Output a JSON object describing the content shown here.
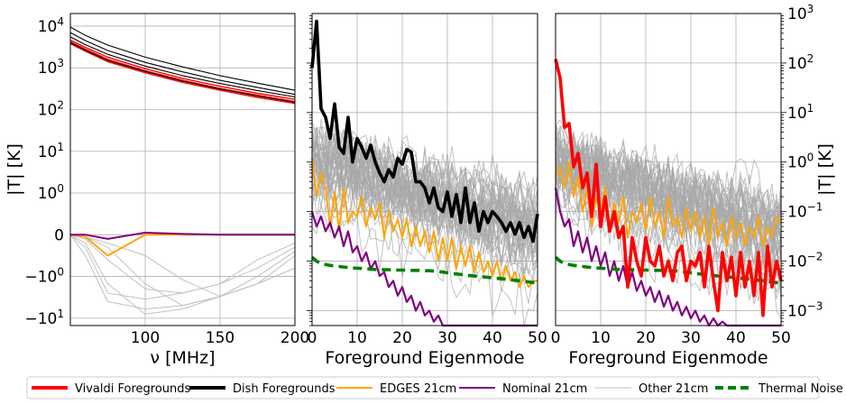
{
  "chart_data": [
    {
      "type": "line",
      "panel": "left",
      "xlabel": "ν [MHz]",
      "ylabel": "|T| [K]",
      "xlim": [
        50,
        200
      ],
      "yscale": "symlog",
      "ylim": [
        -15,
        20000
      ],
      "x_ticks": [
        "100",
        "150",
        "200"
      ],
      "y_ticks": [
        "10^4",
        "10^3",
        "10^2",
        "10^1",
        "10^0",
        "0",
        "−10^0",
        "−10^1"
      ],
      "grid": true,
      "x": [
        50,
        60,
        75,
        100,
        125,
        150,
        175,
        200
      ],
      "series": [
        {
          "name": "Vivaldi Foregrounds",
          "color": "#ff0000",
          "values": [
            4200,
            2800,
            1600,
            850,
            500,
            320,
            220,
            155
          ]
        },
        {
          "name": "Vivaldi Foregrounds",
          "color": "#ff0000",
          "values": [
            3800,
            2500,
            1400,
            760,
            450,
            290,
            195,
            140
          ]
        },
        {
          "name": "Vivaldi Foregrounds",
          "color": "#ff0000",
          "values": [
            4600,
            3100,
            1800,
            950,
            560,
            360,
            245,
            175
          ]
        },
        {
          "name": "Dish Foregrounds",
          "color": "#000000",
          "values": [
            9500,
            6000,
            3500,
            1800,
            1050,
            650,
            430,
            290
          ]
        },
        {
          "name": "Dish Foregrounds",
          "color": "#000000",
          "values": [
            7000,
            4500,
            2600,
            1350,
            800,
            500,
            340,
            230
          ]
        },
        {
          "name": "Dish Foregrounds",
          "color": "#000000",
          "values": [
            5500,
            3600,
            2100,
            1100,
            650,
            420,
            285,
            200
          ]
        },
        {
          "name": "Dish Foregrounds",
          "color": "#000000",
          "values": [
            4000,
            2650,
            1500,
            820,
            480,
            310,
            210,
            150
          ]
        },
        {
          "name": "EDGES 21cm",
          "color": "#ffa500",
          "values": [
            0,
            -0.05,
            -0.5,
            0,
            0,
            0,
            0,
            0
          ]
        },
        {
          "name": "Nominal 21cm",
          "color": "#800080",
          "values": [
            0,
            0,
            -0.1,
            0.05,
            0.02,
            0,
            0,
            0
          ]
        },
        {
          "name": "Other 21cm",
          "color": "#c0c0c0",
          "values": [
            0,
            -0.5,
            -4,
            -6,
            -5,
            -3,
            -1.5,
            -0.8
          ]
        },
        {
          "name": "Other 21cm",
          "color": "#c0c0c0",
          "values": [
            0,
            -0.2,
            -1.5,
            -8,
            -6,
            -3,
            -1.5,
            -0.8
          ]
        },
        {
          "name": "Other 21cm",
          "color": "#c0c0c0",
          "values": [
            0,
            -0.05,
            -0.3,
            -1.5,
            -5,
            -3,
            -1,
            -0.4
          ]
        },
        {
          "name": "Other 21cm",
          "color": "#c0c0c0",
          "values": [
            0,
            -0.05,
            -0.2,
            -0.5,
            -1.2,
            -3,
            -1.5,
            -0.5
          ]
        },
        {
          "name": "Other 21cm",
          "color": "#c0c0c0",
          "values": [
            0,
            -0.1,
            -0.6,
            -2,
            -2.5,
            -1.5,
            -0.8,
            -0.3
          ]
        },
        {
          "name": "Other 21cm",
          "color": "#c0c0c0",
          "values": [
            0,
            -0.3,
            -2.5,
            -3.5,
            -2.5,
            -1.5,
            -0.6,
            -0.2
          ]
        }
      ]
    },
    {
      "type": "line",
      "panel": "middle",
      "xlabel": "Foreground Eigenmode",
      "xlim": [
        0,
        50
      ],
      "yscale": "log",
      "ylim": [
        0.0005,
        1000
      ],
      "x_ticks": [
        "0",
        "10",
        "20",
        "30",
        "40",
        "50"
      ],
      "grid": true,
      "x": [
        0,
        1,
        2,
        3,
        4,
        5,
        6,
        7,
        8,
        9,
        10,
        11,
        12,
        13,
        14,
        15,
        16,
        17,
        18,
        19,
        20,
        21,
        22,
        23,
        24,
        25,
        26,
        27,
        28,
        29,
        30,
        31,
        32,
        33,
        34,
        35,
        36,
        37,
        38,
        39,
        40,
        41,
        42,
        43,
        44,
        45,
        46,
        47,
        48,
        49,
        50
      ],
      "series": [
        {
          "name": "Dish Foregrounds",
          "color": "#000000",
          "values": [
            80,
            700,
            12,
            8,
            3,
            15,
            2,
            1.5,
            8,
            1,
            3,
            2,
            1.2,
            2.2,
            1,
            0.6,
            0.4,
            0.7,
            0.5,
            1.2,
            0.9,
            1.8,
            1.6,
            0.4,
            0.4,
            0.3,
            0.15,
            0.3,
            0.12,
            0.1,
            0.25,
            0.08,
            0.22,
            0.06,
            0.3,
            0.06,
            0.15,
            0.04,
            0.1,
            0.06,
            0.1,
            0.08,
            0.06,
            0.04,
            0.06,
            0.035,
            0.06,
            0.03,
            0.05,
            0.025,
            0.09
          ]
        },
        {
          "name": "EDGES 21cm",
          "color": "#ffa500",
          "values": [
            1.2,
            0.2,
            0.6,
            0.3,
            0.05,
            0.25,
            0.04,
            0.3,
            0.06,
            0.1,
            0.08,
            0.2,
            0.05,
            0.12,
            0.07,
            0.15,
            0.03,
            0.1,
            0.04,
            0.07,
            0.03,
            0.07,
            0.02,
            0.05,
            0.02,
            0.04,
            0.015,
            0.04,
            0.01,
            0.03,
            0.01,
            0.03,
            0.007,
            0.02,
            0.008,
            0.02,
            0.006,
            0.015,
            0.006,
            0.01,
            0.005,
            0.01,
            0.004,
            0.008,
            0.004,
            0.006,
            0.003,
            0.005,
            0.003,
            0.004,
            0.004
          ]
        },
        {
          "name": "Nominal 21cm",
          "color": "#800080",
          "values": [
            0.1,
            0.05,
            0.08,
            0.04,
            0.06,
            0.03,
            0.05,
            0.02,
            0.04,
            0.015,
            0.02,
            0.01,
            0.015,
            0.007,
            0.01,
            0.005,
            0.006,
            0.003,
            0.004,
            0.002,
            0.003,
            0.0015,
            0.002,
            0.001,
            0.0015,
            0.0008,
            0.001,
            0.0006,
            0.0008,
            0.0005,
            0.0005,
            0.0005,
            0.0005,
            0.0005,
            0.0005,
            0.0005,
            0.0005,
            0.0005,
            0.0005,
            0.0005,
            0.0005,
            0.0005,
            0.0005,
            0.0005,
            0.0005,
            0.0005,
            0.0005,
            0.0005,
            0.0005,
            0.0005,
            0.0005
          ]
        },
        {
          "name": "Thermal Noise",
          "color": "#008000",
          "values": [
            0.012,
            0.01,
            0.009,
            0.0085,
            0.0082,
            0.008,
            0.0078,
            0.0076,
            0.0074,
            0.0073,
            0.0072,
            0.0071,
            0.007,
            0.0069,
            0.0068,
            0.0068,
            0.0067,
            0.0067,
            0.0066,
            0.0066,
            0.0066,
            0.0066,
            0.0065,
            0.0065,
            0.0065,
            0.0064,
            0.0064,
            0.0063,
            0.0062,
            0.006,
            0.0058,
            0.0056,
            0.0055,
            0.0054,
            0.0052,
            0.0051,
            0.005,
            0.0049,
            0.0048,
            0.0047,
            0.0046,
            0.0045,
            0.0044,
            0.0043,
            0.0042,
            0.0041,
            0.004,
            0.0039,
            0.0038,
            0.0037,
            0.0036
          ]
        }
      ]
    },
    {
      "type": "line",
      "panel": "right",
      "xlabel": "Foreground Eigenmode",
      "ylabel": "|T| [K]",
      "xlim": [
        0,
        50
      ],
      "yscale": "log",
      "ylim": [
        0.0005,
        1000
      ],
      "x_ticks": [
        "0",
        "10",
        "20",
        "30",
        "40",
        "50"
      ],
      "y_ticks": [
        "10^3",
        "10^2",
        "10^1",
        "10^0",
        "10^−1",
        "10^−2",
        "10^−3"
      ],
      "grid": true,
      "x": [
        0,
        1,
        2,
        3,
        4,
        5,
        6,
        7,
        8,
        9,
        10,
        11,
        12,
        13,
        14,
        15,
        16,
        17,
        18,
        19,
        20,
        21,
        22,
        23,
        24,
        25,
        26,
        27,
        28,
        29,
        30,
        31,
        32,
        33,
        34,
        35,
        36,
        37,
        38,
        39,
        40,
        41,
        42,
        43,
        44,
        45,
        46,
        47,
        48,
        49,
        50
      ],
      "series": [
        {
          "name": "Vivaldi Foregrounds",
          "color": "#ff0000",
          "values": [
            120,
            50,
            5,
            6,
            0.8,
            1.5,
            0.3,
            0.6,
            0.08,
            0.9,
            0.05,
            0.2,
            0.04,
            0.1,
            0.03,
            0.05,
            0.003,
            0.03,
            0.01,
            0.005,
            0.03,
            0.01,
            0.008,
            0.02,
            0.005,
            0.01,
            0.004,
            0.015,
            0.02,
            0.004,
            0.01,
            0.008,
            0.015,
            0.003,
            0.02,
            0.004,
            0.001,
            0.015,
            0.004,
            0.012,
            0.002,
            0.015,
            0.003,
            0.01,
            0.002,
            0.015,
            0.0008,
            0.02,
            0.003,
            0.01,
            0.004
          ]
        },
        {
          "name": "EDGES 21cm",
          "color": "#ffa500",
          "values": [
            0.5,
            0.8,
            0.3,
            1.0,
            0.2,
            0.5,
            0.1,
            0.3,
            0.05,
            0.2,
            0.1,
            0.3,
            0.05,
            0.15,
            0.06,
            0.2,
            0.03,
            0.1,
            0.06,
            0.15,
            0.04,
            0.2,
            0.05,
            0.1,
            0.03,
            0.2,
            0.05,
            0.08,
            0.03,
            0.12,
            0.04,
            0.1,
            0.03,
            0.08,
            0.02,
            0.12,
            0.03,
            0.06,
            0.02,
            0.08,
            0.03,
            0.06,
            0.02,
            0.05,
            0.03,
            0.08,
            0.02,
            0.05,
            0.03,
            0.08,
            0.06
          ]
        },
        {
          "name": "Nominal 21cm",
          "color": "#800080",
          "values": [
            0.3,
            0.1,
            0.05,
            0.07,
            0.02,
            0.04,
            0.015,
            0.03,
            0.01,
            0.02,
            0.008,
            0.015,
            0.005,
            0.01,
            0.004,
            0.008,
            0.003,
            0.006,
            0.0025,
            0.004,
            0.002,
            0.003,
            0.0015,
            0.0025,
            0.0012,
            0.002,
            0.001,
            0.0015,
            0.0008,
            0.0012,
            0.0007,
            0.001,
            0.0006,
            0.0008,
            0.0005,
            0.0007,
            0.0005,
            0.0006,
            0.0005,
            0.0005,
            0.0005,
            0.0005,
            0.0005,
            0.0005,
            0.0005,
            0.0005,
            0.0005,
            0.0005,
            0.0005,
            0.0005,
            0.0005
          ]
        },
        {
          "name": "Thermal Noise",
          "color": "#008000",
          "values": [
            0.012,
            0.01,
            0.009,
            0.0085,
            0.0082,
            0.008,
            0.0078,
            0.0076,
            0.0074,
            0.0073,
            0.0072,
            0.0071,
            0.007,
            0.0069,
            0.0068,
            0.0068,
            0.0067,
            0.0067,
            0.0066,
            0.0066,
            0.0066,
            0.0066,
            0.0065,
            0.0065,
            0.0065,
            0.0064,
            0.0064,
            0.0063,
            0.0062,
            0.006,
            0.0058,
            0.0056,
            0.0055,
            0.0054,
            0.0052,
            0.0051,
            0.005,
            0.0049,
            0.0048,
            0.0047,
            0.0046,
            0.0045,
            0.0044,
            0.0043,
            0.0042,
            0.0041,
            0.004,
            0.0039,
            0.0038,
            0.0037,
            0.0036
          ]
        }
      ]
    }
  ],
  "legend": {
    "placement": "bottom",
    "entries": [
      {
        "label": "Vivaldi Foregrounds",
        "color": "#ff0000",
        "style": "thick"
      },
      {
        "label": "Dish Foregrounds",
        "color": "#000000",
        "style": "thick"
      },
      {
        "label": "EDGES 21cm",
        "color": "#ffa500",
        "style": "medium"
      },
      {
        "label": "Nominal 21cm",
        "color": "#800080",
        "style": "medium"
      },
      {
        "label": "Other 21cm",
        "color": "#c0c0c0",
        "style": "thin"
      },
      {
        "label": "Thermal Noise",
        "color": "#008000",
        "style": "dashed"
      }
    ]
  }
}
